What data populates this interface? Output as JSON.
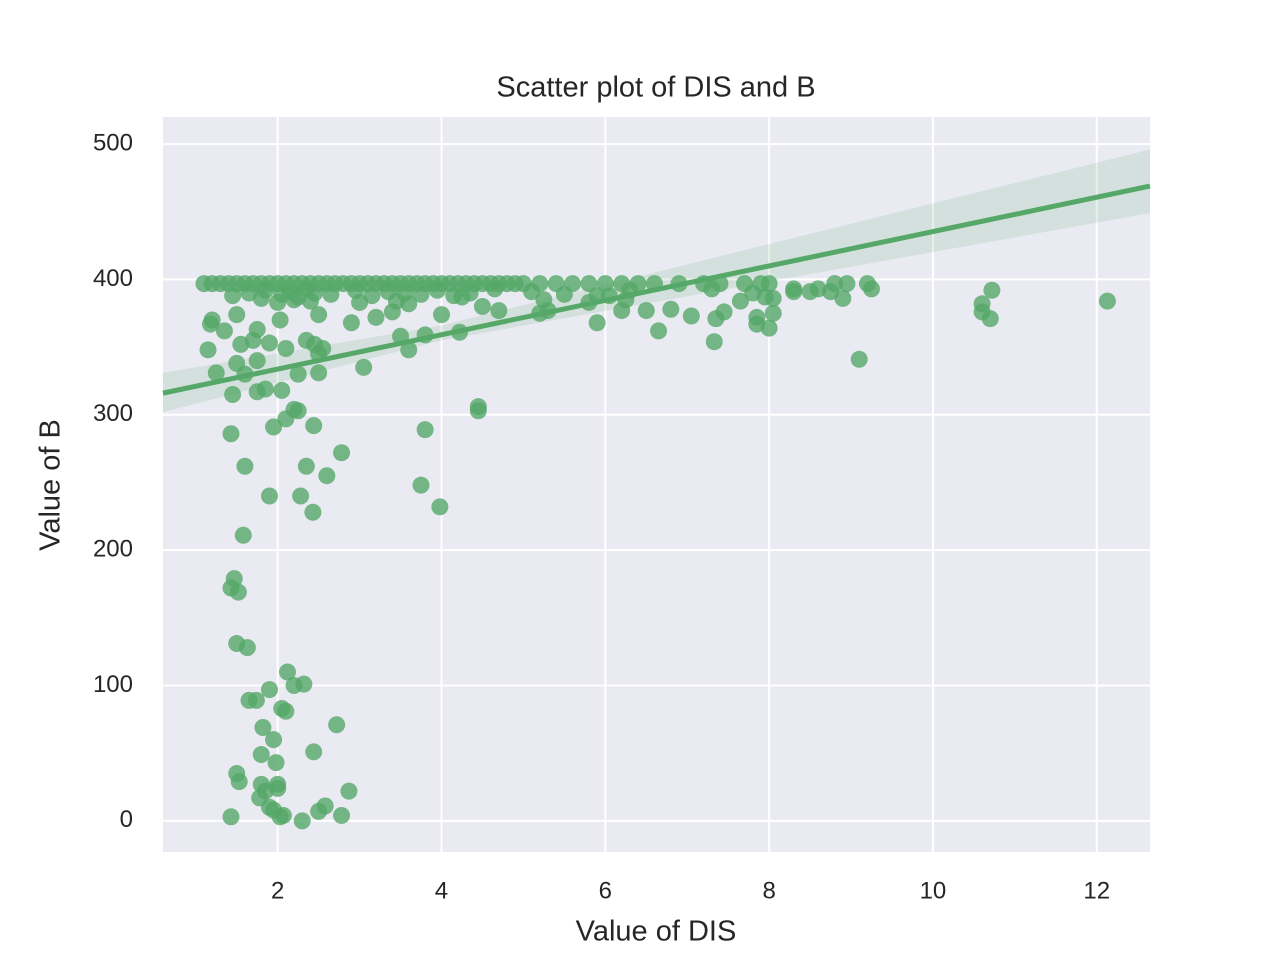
{
  "chart_data": {
    "type": "scatter",
    "title": "Scatter plot of DIS and B",
    "x_label": "Value of DIS",
    "y_label": "Value of B",
    "color": "#55a868",
    "grid": true,
    "background": "#eaeaf2",
    "xlim": [
      0.6,
      12.65
    ],
    "ylim": [
      -23,
      520
    ],
    "xticks": [
      2,
      4,
      6,
      8,
      10,
      12
    ],
    "yticks": [
      0,
      100,
      200,
      300,
      400,
      500
    ],
    "x": [
      1.43,
      1.5,
      1.53,
      1.8,
      1.78,
      1.85,
      1.9,
      1.95,
      2.0,
      2.0,
      2.03,
      2.07,
      2.3,
      2.5,
      2.58,
      2.78,
      2.87,
      1.98,
      1.8,
      2.44,
      1.95,
      1.82,
      2.72,
      1.65,
      1.74,
      2.05,
      2.1,
      1.9,
      2.2,
      2.32,
      2.12,
      1.5,
      1.63,
      1.43,
      1.47,
      1.52,
      1.58,
      1.9,
      2.28,
      2.43,
      1.6,
      2.35,
      2.6,
      2.78,
      3.75,
      3.98,
      1.43,
      1.95,
      2.44,
      3.8,
      2.1,
      2.2,
      2.25,
      4.45,
      4.45,
      1.15,
      1.45,
      1.25,
      1.5,
      1.75,
      1.85,
      2.05,
      1.6,
      1.75,
      2.25,
      2.5,
      3.05,
      2.1,
      2.35,
      2.45,
      2.5,
      2.55,
      1.55,
      1.7,
      1.9,
      1.75,
      1.35,
      1.18,
      1.2,
      1.5,
      3.6,
      3.5,
      3.8,
      4.22,
      6.65,
      5.9,
      7.33,
      9.1,
      7.85,
      8.0,
      3.2,
      2.9,
      2.03,
      2.5,
      4.0,
      5.2,
      5.3,
      7.05,
      7.35,
      7.45,
      7.85,
      8.05,
      10.6,
      10.7,
      10.6,
      12.13,
      10.72,
      8.9,
      7.65,
      8.5,
      8.3,
      8.75,
      6.2,
      6.5,
      6.8,
      4.5,
      4.7,
      5.8,
      6.25,
      3.4,
      3.6,
      1.1,
      1.2,
      1.3,
      1.4,
      1.5,
      1.6,
      1.7,
      1.8,
      1.9,
      2.0,
      2.1,
      2.2,
      2.3,
      2.4,
      2.5,
      2.6,
      2.7,
      2.8,
      2.9,
      3.0,
      3.1,
      3.2,
      3.3,
      3.4,
      3.5,
      3.6,
      3.7,
      3.8,
      3.9,
      4.0,
      4.1,
      4.2,
      4.3,
      4.4,
      4.5,
      4.6,
      4.7,
      4.8,
      4.9,
      5.0,
      5.2,
      5.4,
      5.6,
      5.8,
      6.0,
      6.2,
      6.4,
      6.6,
      6.9,
      7.2,
      7.4,
      7.7,
      7.9,
      8.0,
      8.3,
      8.6,
      8.8,
      8.95,
      9.2,
      9.25,
      1.45,
      1.65,
      1.85,
      2.05,
      2.15,
      2.25,
      2.35,
      2.45,
      2.65,
      2.95,
      3.15,
      3.35,
      3.55,
      3.75,
      3.95,
      4.15,
      4.35,
      4.65,
      5.1,
      5.5,
      5.9,
      6.3,
      7.3,
      7.8,
      8.05,
      2.0,
      2.2,
      2.4,
      1.8,
      3.0,
      3.45,
      4.25,
      5.25,
      6.05,
      7.95
    ],
    "y": [
      3,
      35,
      29,
      27,
      17,
      22,
      10,
      8,
      27,
      24,
      3,
      4,
      0,
      7,
      11,
      4,
      22,
      43,
      49,
      51,
      60,
      69,
      71,
      89,
      89,
      83,
      81,
      97,
      100,
      101,
      110,
      131,
      128,
      172,
      179,
      169,
      211,
      240,
      240,
      228,
      262,
      262,
      255,
      272,
      248,
      232,
      286,
      291,
      292,
      289,
      297,
      304,
      303,
      306,
      303,
      348,
      315,
      331,
      338,
      317,
      319,
      318,
      330,
      340,
      330,
      331,
      335,
      349,
      355,
      352,
      345,
      349,
      352,
      355,
      353,
      363,
      362,
      367,
      370,
      374,
      348,
      358,
      359,
      361,
      362,
      368,
      354,
      341,
      367,
      364,
      372,
      368,
      370,
      374,
      374,
      375,
      377,
      373,
      371,
      376,
      372,
      375,
      376,
      371,
      382,
      384,
      392,
      386,
      384,
      391,
      391,
      391,
      377,
      377,
      378,
      380,
      377,
      383,
      385,
      376,
      382,
      396.9,
      396.9,
      396.9,
      396.9,
      396.9,
      396.9,
      396.9,
      396.9,
      396.9,
      396.9,
      396.9,
      396.9,
      396.9,
      396.9,
      396.9,
      396.9,
      396.9,
      396.9,
      396.9,
      396.9,
      396.9,
      396.9,
      396.9,
      396.9,
      396.9,
      396.9,
      396.9,
      396.9,
      396.9,
      396.9,
      396.9,
      396.9,
      396.9,
      396.9,
      396.9,
      396.9,
      396.9,
      396.9,
      396.9,
      396.9,
      396.9,
      396.9,
      396.9,
      396.9,
      396.9,
      396.9,
      396.9,
      396.9,
      396.9,
      396.9,
      396.9,
      396.9,
      396.9,
      396.9,
      393,
      393,
      396.9,
      396.9,
      396.9,
      393,
      388,
      390,
      392,
      389,
      391,
      387,
      393,
      390,
      389,
      392,
      388,
      391,
      390,
      389,
      392,
      388,
      390,
      393,
      391,
      389,
      388,
      392,
      393,
      390,
      386,
      383,
      385,
      384,
      386,
      383,
      384,
      387,
      385,
      388,
      387
    ],
    "fit_line": {
      "x": [
        0.6,
        12.65
      ],
      "y": [
        316,
        469
      ]
    },
    "confidence_band": {
      "x": [
        0.6,
        4,
        12.65
      ],
      "lower": [
        302,
        355,
        449
      ],
      "upper": [
        331,
        366,
        496
      ]
    }
  }
}
